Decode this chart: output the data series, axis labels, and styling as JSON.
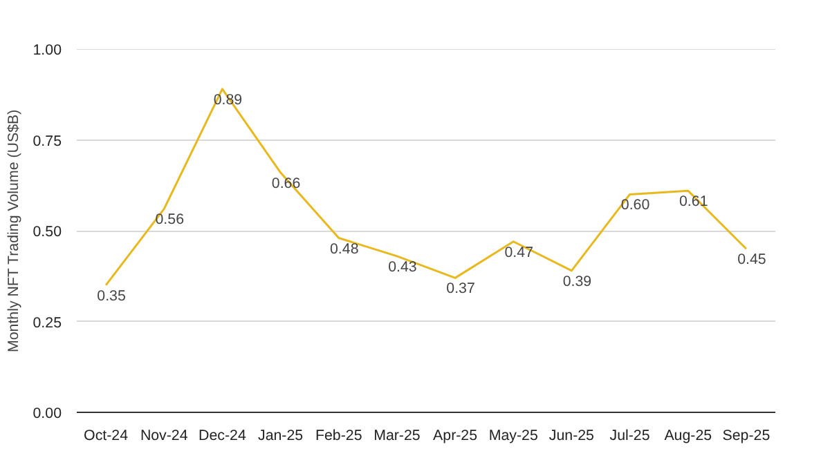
{
  "chart_data": {
    "type": "line",
    "ylabel": "Monthly NFT Trading Volume (US$B)",
    "categories": [
      "Oct-24",
      "Nov-24",
      "Dec-24",
      "Jan-25",
      "Feb-25",
      "Mar-25",
      "Apr-25",
      "May-25",
      "Jun-25",
      "Jul-25",
      "Aug-25",
      "Sep-25"
    ],
    "series": [
      {
        "color": "#e8b81e",
        "values": [
          0.35,
          0.56,
          0.89,
          0.66,
          0.48,
          0.43,
          0.37,
          0.47,
          0.39,
          0.6,
          0.61,
          0.45
        ],
        "value_labels": [
          "0.35",
          "0.56",
          "0.89",
          "0.66",
          "0.48",
          "0.43",
          "0.37",
          "0.47",
          "0.39",
          "0.60",
          "0.61",
          "0.45"
        ]
      }
    ],
    "ylim": [
      0,
      1
    ],
    "yticks": [
      "0.00",
      "0.25",
      "0.50",
      "0.75",
      "1.00"
    ],
    "grid": "y",
    "line_style": "solid"
  }
}
